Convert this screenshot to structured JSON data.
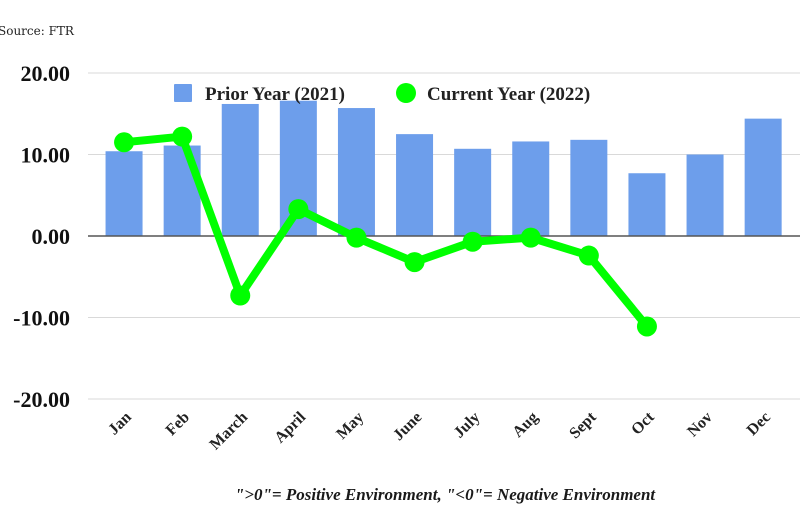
{
  "source": "Source: FTR",
  "footnote": "\">0\"= Positive Environment, \"<0\"= Negative Environment",
  "colors": {
    "bar": "#6d9eeb",
    "line": "#00ff00",
    "grid": "#d9d9d9",
    "zero": "#555555"
  },
  "chart_data": {
    "type": "bar",
    "categories": [
      "Jan",
      "Feb",
      "March",
      "April",
      "May",
      "June",
      "July",
      "Aug",
      "Sept",
      "Oct",
      "Nov",
      "Dec"
    ],
    "ylim": [
      -20,
      20
    ],
    "yticks": [
      "20.00",
      "10.00",
      "0.00",
      "-10.00",
      "-20.00"
    ],
    "grid": true,
    "legend_position": "top",
    "series": [
      {
        "name": "Prior Year (2021)",
        "type": "bar",
        "values": [
          10.4,
          11.1,
          16.2,
          16.6,
          15.7,
          12.5,
          10.7,
          11.6,
          11.8,
          7.7,
          10.0,
          14.4
        ]
      },
      {
        "name": "Current Year (2022)",
        "type": "line",
        "values": [
          11.5,
          12.2,
          -7.3,
          3.3,
          -0.2,
          -3.2,
          -0.7,
          -0.2,
          -2.4,
          -11.1,
          null,
          null
        ]
      }
    ]
  }
}
